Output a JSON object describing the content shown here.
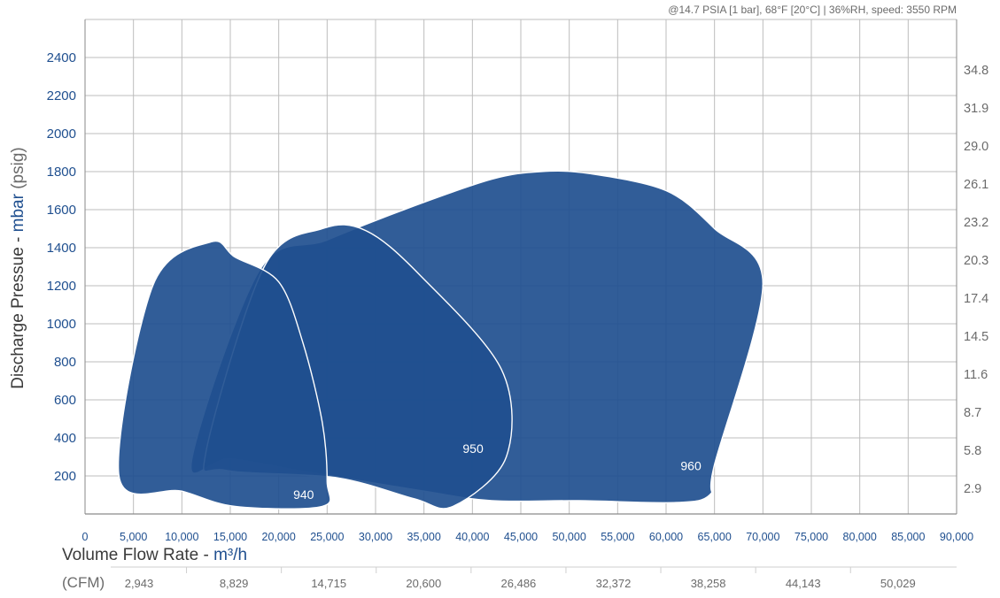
{
  "colors": {
    "primary_blue": "#1f4f8f",
    "grid": "#bdbdbd",
    "axis_text_blue": "#1f4f8f",
    "axis_text_gray": "#6b6b6b",
    "dark_text": "#3a3a3a"
  },
  "conditions_note": "@14.7 PSIA [1 bar], 68°F [20°C] | 36%RH, speed: 3550 RPM",
  "chart_data": {
    "type": "area",
    "x_axis": {
      "label_prefix": "Volume Flow Rate - ",
      "label_unit": "m³/h",
      "min": 0,
      "max": 90000,
      "step": 5000,
      "tick_labels": [
        "0",
        "5,000",
        "10,000",
        "15,000",
        "20,000",
        "25,000",
        "30,000",
        "35,000",
        "40,000",
        "45,000",
        "50,000",
        "55,000",
        "60,000",
        "65,000",
        "70,000",
        "75,000",
        "80,000",
        "85,000",
        "90,000"
      ]
    },
    "y_axis": {
      "label_prefix": "Discharge Pressue - ",
      "label_unit": "mbar",
      "label_suffix": " (psig)",
      "min": 0,
      "max": 2600,
      "ticks": [
        200,
        400,
        600,
        800,
        1000,
        1200,
        1400,
        1600,
        1800,
        2000,
        2200,
        2400
      ],
      "tick_labels": [
        "200",
        "400",
        "600",
        "800",
        "1000",
        "1200",
        "1400",
        "1600",
        "1800",
        "2000",
        "2200",
        "2400"
      ]
    },
    "y2_axis": {
      "unit": "psig",
      "ticks": [
        135,
        335,
        535,
        735,
        935,
        1135,
        1335,
        1535,
        1735,
        1935,
        2135,
        2335
      ],
      "tick_labels": [
        "2.9",
        "5.8",
        "8.7",
        "11.6",
        "14.5",
        "17.4",
        "20.3",
        "23.2",
        "26.1",
        "29.0",
        "31.9",
        "34.8"
      ]
    },
    "cfm_axis": {
      "prefix": "(CFM)",
      "tick_labels": [
        "2,943",
        "8,829",
        "14,715",
        "20,600",
        "26,486",
        "32,372",
        "38,258",
        "44,143",
        "50,029"
      ]
    },
    "grid": true,
    "series": [
      {
        "name": "960",
        "label_at": [
          61500,
          230
        ],
        "points": [
          [
            18000,
            1280
          ],
          [
            25000,
            1440
          ],
          [
            34000,
            1620
          ],
          [
            42000,
            1760
          ],
          [
            47000,
            1800
          ],
          [
            52000,
            1790
          ],
          [
            60000,
            1700
          ],
          [
            65000,
            1500
          ],
          [
            70000,
            1210
          ],
          [
            65000,
            260
          ],
          [
            64500,
            100
          ],
          [
            61000,
            60
          ],
          [
            51000,
            70
          ],
          [
            42000,
            70
          ],
          [
            35000,
            120
          ],
          [
            23000,
            220
          ],
          [
            15000,
            290
          ],
          [
            11000,
            280
          ]
        ]
      },
      {
        "name": "950",
        "label_at": [
          39000,
          320
        ],
        "points": [
          [
            18500,
            1300
          ],
          [
            24500,
            1500
          ],
          [
            29000,
            1490
          ],
          [
            34500,
            1260
          ],
          [
            43000,
            760
          ],
          [
            43500,
            300
          ],
          [
            38000,
            40
          ],
          [
            34000,
            80
          ],
          [
            26000,
            190
          ],
          [
            14500,
            230
          ],
          [
            12500,
            330
          ]
        ]
      },
      {
        "name": "940",
        "label_at": [
          21500,
          80
        ],
        "points": [
          [
            7000,
            1200
          ],
          [
            13000,
            1430
          ],
          [
            15500,
            1350
          ],
          [
            20000,
            1220
          ],
          [
            22500,
            900
          ],
          [
            24500,
            480
          ],
          [
            25000,
            170
          ],
          [
            24500,
            40
          ],
          [
            15500,
            40
          ],
          [
            10000,
            120
          ],
          [
            3500,
            200
          ]
        ]
      }
    ]
  }
}
